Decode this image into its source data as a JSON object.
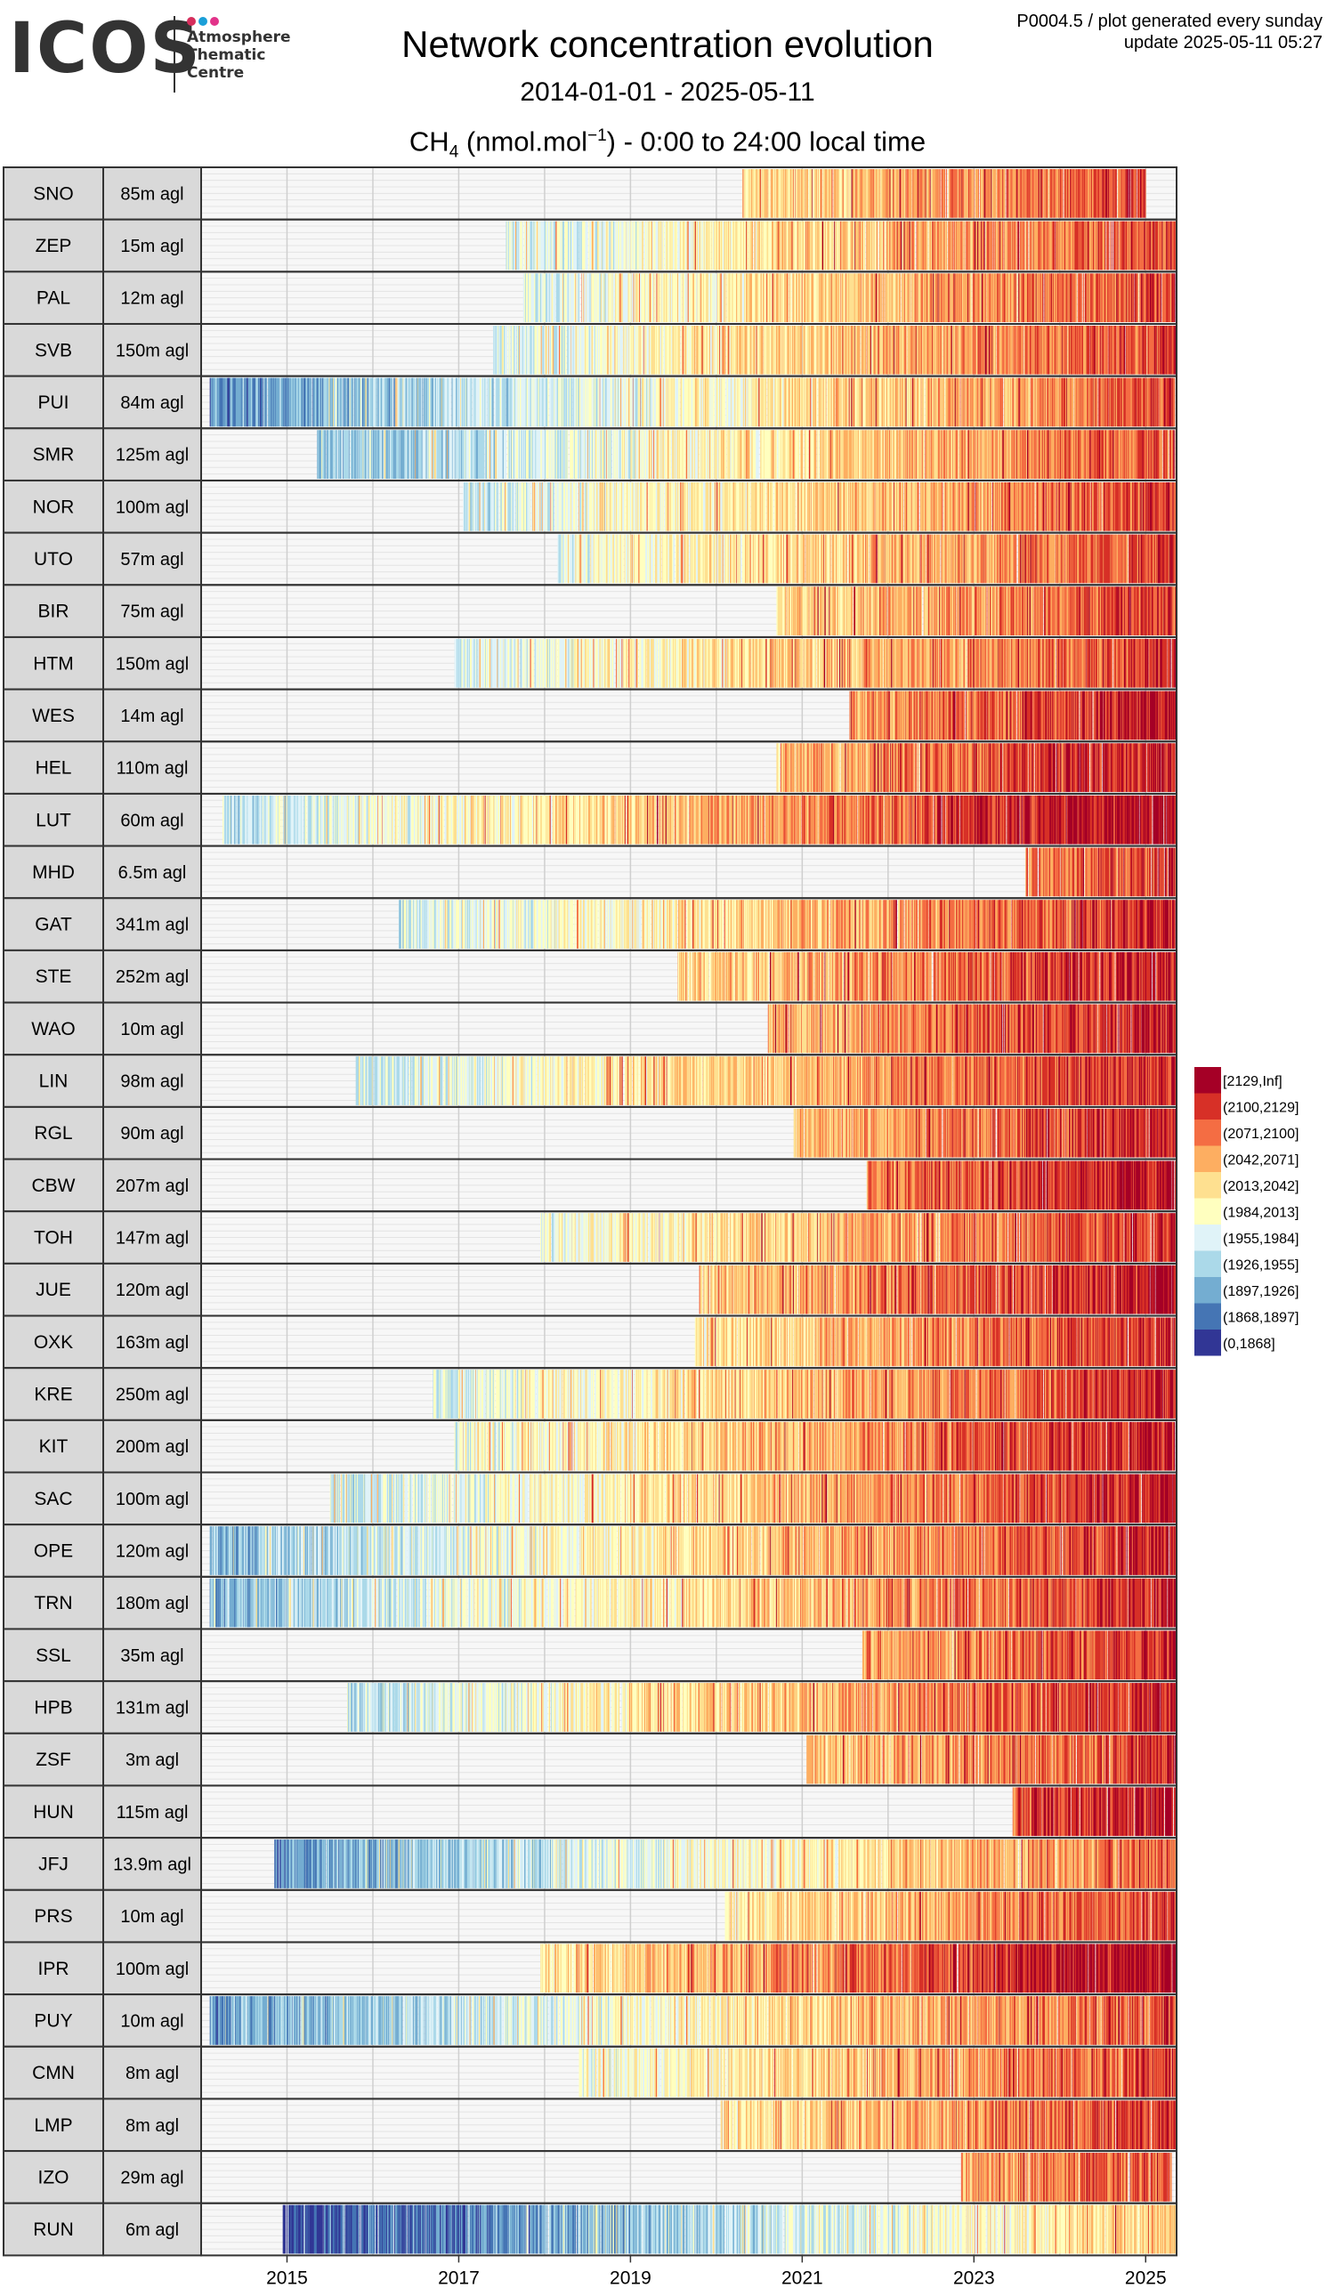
{
  "logo": {
    "wordmark": "ICOS",
    "text_lines": [
      "Atmosphere",
      "Thematic",
      "Centre"
    ],
    "dot_colors": [
      "#d62f5d",
      "#1a9fd8",
      "#e2338a"
    ]
  },
  "header": {
    "title": "Network concentration evolution",
    "date_range": "2014-01-01 - 2025-05-11",
    "species_main": "CH",
    "species_sub": "4",
    "unit_open": " (nmol.mol",
    "unit_sup": "−1",
    "unit_close": ") - 0:00 to 24:00 local time",
    "meta_line1": "P0004.5 / plot generated every sunday",
    "meta_line2": "update  2025-05-11 05:27"
  },
  "chart_data": {
    "type": "heatmap",
    "xlim": [
      "2014-01-01",
      "2025-05-11"
    ],
    "x_ticks": [
      "2015",
      "2017",
      "2019",
      "2021",
      "2023",
      "2025"
    ],
    "legend_placement": "right",
    "legend": [
      {
        "label": "[2129,Inf]",
        "color": "#a50026"
      },
      {
        "label": "(2100,2129]",
        "color": "#d73027"
      },
      {
        "label": "(2071,2100]",
        "color": "#f46d43"
      },
      {
        "label": "(2042,2071]",
        "color": "#fdae61"
      },
      {
        "label": "(2013,2042]",
        "color": "#fee090"
      },
      {
        "label": "(1984,2013]",
        "color": "#ffffbf"
      },
      {
        "label": "(1955,1984]",
        "color": "#e0f3f8"
      },
      {
        "label": "(1926,1955]",
        "color": "#abd9e9"
      },
      {
        "label": "(1897,1926]",
        "color": "#74add1"
      },
      {
        "label": "(1868,1897]",
        "color": "#4575b4"
      },
      {
        "label": "(0,1868]",
        "color": "#313695"
      }
    ],
    "stations": [
      {
        "code": "SNO",
        "height": "85m agl",
        "start": 2020.3,
        "end": 2025.0,
        "offset": 0.3
      },
      {
        "code": "ZEP",
        "height": "15m agl",
        "start": 2017.55,
        "end": 2025.35,
        "offset": 0.0
      },
      {
        "code": "PAL",
        "height": "12m agl",
        "start": 2017.75,
        "end": 2025.35,
        "offset": 0.1
      },
      {
        "code": "SVB",
        "height": "150m agl",
        "start": 2017.4,
        "end": 2025.35,
        "offset": 0.2
      },
      {
        "code": "PUI",
        "height": "84m agl",
        "start": 2014.1,
        "end": 2025.35,
        "offset": -0.3
      },
      {
        "code": "SMR",
        "height": "125m agl",
        "start": 2015.35,
        "end": 2025.35,
        "offset": -0.1
      },
      {
        "code": "NOR",
        "height": "100m agl",
        "start": 2017.05,
        "end": 2025.35,
        "offset": 0.1
      },
      {
        "code": "UTO",
        "height": "57m agl",
        "start": 2018.15,
        "end": 2025.35,
        "offset": 0.1
      },
      {
        "code": "BIR",
        "height": "75m agl",
        "start": 2020.7,
        "end": 2025.35,
        "offset": 0.1
      },
      {
        "code": "HTM",
        "height": "150m agl",
        "start": 2016.95,
        "end": 2025.35,
        "offset": 0.3
      },
      {
        "code": "WES",
        "height": "14m agl",
        "start": 2021.55,
        "end": 2025.35,
        "offset": 1.0
      },
      {
        "code": "HEL",
        "height": "110m agl",
        "start": 2020.7,
        "end": 2025.35,
        "offset": 1.0
      },
      {
        "code": "LUT",
        "height": "60m agl",
        "start": 2014.25,
        "end": 2025.35,
        "offset": 1.7
      },
      {
        "code": "MHD",
        "height": "6.5m agl",
        "start": 2023.6,
        "end": 2025.35,
        "offset": 0.2
      },
      {
        "code": "GAT",
        "height": "341m agl",
        "start": 2016.3,
        "end": 2025.35,
        "offset": 0.6
      },
      {
        "code": "STE",
        "height": "252m agl",
        "start": 2019.55,
        "end": 2025.35,
        "offset": 1.0
      },
      {
        "code": "WAO",
        "height": "10m agl",
        "start": 2020.6,
        "end": 2025.35,
        "offset": 1.0
      },
      {
        "code": "LIN",
        "height": "98m agl",
        "start": 2015.8,
        "end": 2025.35,
        "offset": 0.8
      },
      {
        "code": "RGL",
        "height": "90m agl",
        "start": 2020.9,
        "end": 2025.35,
        "offset": 0.8
      },
      {
        "code": "CBW",
        "height": "207m agl",
        "start": 2021.75,
        "end": 2025.35,
        "offset": 1.3
      },
      {
        "code": "TOH",
        "height": "147m agl",
        "start": 2017.95,
        "end": 2025.35,
        "offset": 0.5
      },
      {
        "code": "JUE",
        "height": "120m agl",
        "start": 2019.8,
        "end": 2025.35,
        "offset": 1.2
      },
      {
        "code": "OXK",
        "height": "163m agl",
        "start": 2019.75,
        "end": 2025.35,
        "offset": 0.5
      },
      {
        "code": "KRE",
        "height": "250m agl",
        "start": 2016.7,
        "end": 2025.35,
        "offset": 0.6
      },
      {
        "code": "KIT",
        "height": "200m agl",
        "start": 2016.95,
        "end": 2025.35,
        "offset": 1.0
      },
      {
        "code": "SAC",
        "height": "100m agl",
        "start": 2015.5,
        "end": 2025.35,
        "offset": 0.9
      },
      {
        "code": "OPE",
        "height": "120m agl",
        "start": 2014.1,
        "end": 2025.35,
        "offset": 0.7
      },
      {
        "code": "TRN",
        "height": "180m agl",
        "start": 2014.1,
        "end": 2025.35,
        "offset": 0.7
      },
      {
        "code": "SSL",
        "height": "35m agl",
        "start": 2021.7,
        "end": 2025.35,
        "offset": 0.5
      },
      {
        "code": "HPB",
        "height": "131m agl",
        "start": 2015.7,
        "end": 2025.35,
        "offset": 0.7
      },
      {
        "code": "ZSF",
        "height": "3m agl",
        "start": 2021.05,
        "end": 2025.35,
        "offset": 0.3
      },
      {
        "code": "HUN",
        "height": "115m agl",
        "start": 2023.45,
        "end": 2025.35,
        "offset": 1.3
      },
      {
        "code": "JFJ",
        "height": "13.9m agl",
        "start": 2014.85,
        "end": 2025.35,
        "offset": -0.6
      },
      {
        "code": "PRS",
        "height": "10m agl",
        "start": 2020.1,
        "end": 2025.35,
        "offset": 0.1
      },
      {
        "code": "IPR",
        "height": "100m agl",
        "start": 2017.95,
        "end": 2025.35,
        "offset": 1.7
      },
      {
        "code": "PUY",
        "height": "10m agl",
        "start": 2014.1,
        "end": 2025.35,
        "offset": -0.1
      },
      {
        "code": "CMN",
        "height": "8m agl",
        "start": 2018.4,
        "end": 2025.35,
        "offset": 0.1
      },
      {
        "code": "LMP",
        "height": "8m agl",
        "start": 2020.05,
        "end": 2025.35,
        "offset": 0.2
      },
      {
        "code": "IZO",
        "height": "29m agl",
        "start": 2022.85,
        "end": 2025.3,
        "offset": -0.1
      },
      {
        "code": "RUN",
        "height": "6m agl",
        "start": 2014.95,
        "end": 2025.35,
        "offset": -2.5
      }
    ]
  }
}
